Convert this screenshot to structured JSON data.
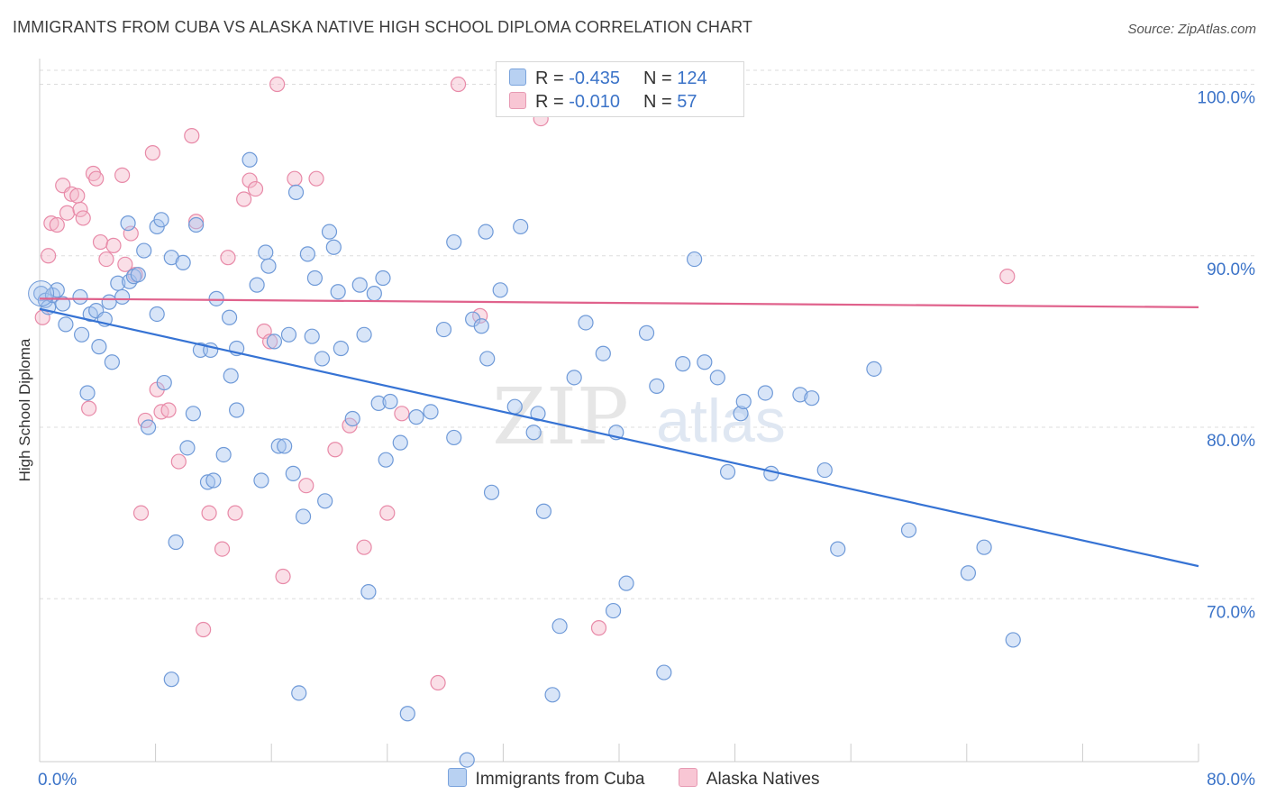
{
  "header": {
    "title": "IMMIGRANTS FROM CUBA VS ALASKA NATIVE HIGH SCHOOL DIPLOMA CORRELATION CHART",
    "source": "Source: ZipAtlas.com"
  },
  "watermark": {
    "zip": "ZIP",
    "atlas": "atlas"
  },
  "legend_top": {
    "rows": [
      {
        "r_label": "R = ",
        "r_value": "-0.435",
        "n_label": "N = ",
        "n_value": "124"
      },
      {
        "r_label": "R = ",
        "r_value": "-0.010",
        "n_label": "N = ",
        "n_value": "57"
      }
    ]
  },
  "colors": {
    "blue_fill": "#a9c6ef",
    "blue_stroke": "#6f9ad8",
    "blue_line": "#3673d4",
    "pink_fill": "#f5b7c9",
    "pink_stroke": "#e88aa8",
    "pink_line": "#e0628c",
    "tick_label": "#3b73c8",
    "grid": "#dddddd"
  },
  "chart_data": {
    "type": "scatter",
    "title": "IMMIGRANTS FROM CUBA VS ALASKA NATIVE HIGH SCHOOL DIPLOMA CORRELATION CHART",
    "xlabel": "",
    "ylabel": "High School Diploma",
    "xlim": [
      0,
      80
    ],
    "ylim": [
      60.5,
      101.5
    ],
    "x_tick_labels": [
      "0.0%",
      "80.0%"
    ],
    "y_ticks": [
      70,
      80,
      90,
      100
    ],
    "y_tick_labels": [
      "70.0%",
      "80.0%",
      "90.0%",
      "100.0%"
    ],
    "grid": "horizontal dashed",
    "legend_placement": "bottom-center",
    "series": [
      {
        "name": "Immigrants from Cuba",
        "color": "#a9c6ef",
        "trend": {
          "x": [
            0,
            80
          ],
          "y": [
            86.9,
            71.9
          ]
        },
        "points": [
          [
            0.1,
            87.8
          ],
          [
            0.4,
            87.4
          ],
          [
            0.6,
            87.0
          ],
          [
            0.9,
            87.7
          ],
          [
            1.2,
            88.0
          ],
          [
            1.6,
            87.2
          ],
          [
            1.8,
            86.0
          ],
          [
            2.8,
            87.6
          ],
          [
            2.9,
            85.4
          ],
          [
            3.3,
            82.0
          ],
          [
            3.5,
            86.6
          ],
          [
            3.9,
            86.8
          ],
          [
            4.1,
            84.7
          ],
          [
            4.5,
            86.3
          ],
          [
            4.8,
            87.3
          ],
          [
            5.0,
            83.8
          ],
          [
            5.4,
            88.4
          ],
          [
            5.7,
            87.6
          ],
          [
            6.1,
            91.9
          ],
          [
            6.2,
            88.5
          ],
          [
            6.5,
            88.8
          ],
          [
            6.8,
            88.9
          ],
          [
            7.2,
            90.3
          ],
          [
            7.5,
            80.0
          ],
          [
            8.1,
            86.6
          ],
          [
            8.1,
            91.7
          ],
          [
            8.4,
            92.1
          ],
          [
            8.6,
            82.6
          ],
          [
            9.1,
            89.9
          ],
          [
            9.4,
            73.3
          ],
          [
            9.9,
            89.6
          ],
          [
            10.2,
            78.8
          ],
          [
            10.6,
            80.8
          ],
          [
            10.8,
            91.8
          ],
          [
            11.1,
            84.5
          ],
          [
            11.6,
            76.8
          ],
          [
            11.8,
            84.5
          ],
          [
            12.0,
            76.9
          ],
          [
            12.2,
            87.5
          ],
          [
            12.7,
            78.4
          ],
          [
            13.1,
            86.4
          ],
          [
            13.2,
            83.0
          ],
          [
            13.6,
            81.0
          ],
          [
            13.6,
            84.6
          ],
          [
            14.5,
            95.6
          ],
          [
            15.0,
            88.3
          ],
          [
            15.3,
            76.9
          ],
          [
            15.6,
            90.2
          ],
          [
            15.8,
            89.4
          ],
          [
            16.2,
            85.0
          ],
          [
            16.5,
            78.9
          ],
          [
            16.9,
            78.9
          ],
          [
            17.2,
            85.4
          ],
          [
            17.5,
            77.3
          ],
          [
            17.7,
            93.7
          ],
          [
            18.2,
            74.8
          ],
          [
            18.5,
            90.1
          ],
          [
            18.8,
            85.3
          ],
          [
            19.0,
            88.7
          ],
          [
            19.5,
            84.0
          ],
          [
            19.7,
            75.7
          ],
          [
            20.0,
            91.4
          ],
          [
            20.3,
            90.5
          ],
          [
            20.6,
            87.9
          ],
          [
            20.8,
            84.6
          ],
          [
            21.6,
            80.5
          ],
          [
            22.1,
            88.3
          ],
          [
            22.4,
            85.4
          ],
          [
            22.7,
            70.4
          ],
          [
            23.1,
            87.8
          ],
          [
            23.4,
            81.4
          ],
          [
            23.7,
            88.7
          ],
          [
            23.9,
            78.1
          ],
          [
            24.2,
            81.5
          ],
          [
            24.9,
            79.1
          ],
          [
            25.4,
            63.3
          ],
          [
            26.0,
            80.6
          ],
          [
            27.0,
            80.9
          ],
          [
            27.9,
            85.7
          ],
          [
            28.6,
            79.4
          ],
          [
            28.6,
            90.8
          ],
          [
            29.5,
            60.6
          ],
          [
            29.9,
            86.3
          ],
          [
            30.5,
            85.9
          ],
          [
            30.8,
            91.4
          ],
          [
            30.9,
            84.0
          ],
          [
            31.2,
            76.2
          ],
          [
            31.8,
            88.0
          ],
          [
            32.8,
            81.2
          ],
          [
            33.2,
            91.7
          ],
          [
            34.1,
            79.7
          ],
          [
            34.4,
            80.8
          ],
          [
            34.8,
            75.1
          ],
          [
            35.4,
            64.4
          ],
          [
            35.9,
            68.4
          ],
          [
            36.9,
            82.9
          ],
          [
            37.7,
            86.1
          ],
          [
            38.9,
            84.3
          ],
          [
            39.6,
            69.3
          ],
          [
            39.8,
            79.7
          ],
          [
            40.5,
            70.9
          ],
          [
            41.9,
            85.5
          ],
          [
            42.6,
            82.4
          ],
          [
            43.1,
            65.7
          ],
          [
            44.4,
            83.7
          ],
          [
            45.2,
            89.8
          ],
          [
            45.9,
            83.8
          ],
          [
            46.8,
            82.9
          ],
          [
            47.5,
            77.4
          ],
          [
            48.4,
            80.8
          ],
          [
            48.6,
            81.5
          ],
          [
            50.1,
            82.0
          ],
          [
            50.5,
            77.3
          ],
          [
            52.5,
            81.9
          ],
          [
            53.3,
            81.7
          ],
          [
            54.2,
            77.5
          ],
          [
            55.1,
            72.9
          ],
          [
            57.6,
            83.4
          ],
          [
            60.0,
            74.0
          ],
          [
            64.1,
            71.5
          ],
          [
            65.2,
            73.0
          ],
          [
            67.2,
            67.6
          ],
          [
            9.1,
            65.3
          ],
          [
            17.9,
            64.5
          ]
        ]
      },
      {
        "name": "Alaska Natives",
        "color": "#f5b7c9",
        "trend": {
          "x": [
            0,
            80
          ],
          "y": [
            87.5,
            87.0
          ]
        },
        "points": [
          [
            0.2,
            86.4
          ],
          [
            0.6,
            90.0
          ],
          [
            0.8,
            91.9
          ],
          [
            1.2,
            91.8
          ],
          [
            1.6,
            94.1
          ],
          [
            1.9,
            92.5
          ],
          [
            2.2,
            93.6
          ],
          [
            2.6,
            93.5
          ],
          [
            2.8,
            92.7
          ],
          [
            3.0,
            92.2
          ],
          [
            3.4,
            81.1
          ],
          [
            3.7,
            94.8
          ],
          [
            3.9,
            94.5
          ],
          [
            4.2,
            90.8
          ],
          [
            4.6,
            89.8
          ],
          [
            5.1,
            90.6
          ],
          [
            5.7,
            94.7
          ],
          [
            5.9,
            89.5
          ],
          [
            6.3,
            91.3
          ],
          [
            6.6,
            88.9
          ],
          [
            7.0,
            75.0
          ],
          [
            7.3,
            80.4
          ],
          [
            7.8,
            96.0
          ],
          [
            8.1,
            82.2
          ],
          [
            8.4,
            80.9
          ],
          [
            8.9,
            81.0
          ],
          [
            9.6,
            78.0
          ],
          [
            10.5,
            97.0
          ],
          [
            10.8,
            92.0
          ],
          [
            11.3,
            68.2
          ],
          [
            11.7,
            75.0
          ],
          [
            12.6,
            72.9
          ],
          [
            13.0,
            89.9
          ],
          [
            13.5,
            75.0
          ],
          [
            14.1,
            93.3
          ],
          [
            14.5,
            94.4
          ],
          [
            14.9,
            93.9
          ],
          [
            15.5,
            85.6
          ],
          [
            15.9,
            85.0
          ],
          [
            16.4,
            100.0
          ],
          [
            16.8,
            71.3
          ],
          [
            17.6,
            94.5
          ],
          [
            18.4,
            76.6
          ],
          [
            19.1,
            94.5
          ],
          [
            20.4,
            78.7
          ],
          [
            21.4,
            80.1
          ],
          [
            22.4,
            73.0
          ],
          [
            24.0,
            75.0
          ],
          [
            25.0,
            80.8
          ],
          [
            27.5,
            65.1
          ],
          [
            28.9,
            100.0
          ],
          [
            30.4,
            86.5
          ],
          [
            34.6,
            98.0
          ],
          [
            38.6,
            68.3
          ],
          [
            40.2,
            98.9
          ],
          [
            44.8,
            100.0
          ],
          [
            66.8,
            88.8
          ]
        ]
      }
    ]
  },
  "legend_bottom": {
    "items": [
      {
        "label": "Immigrants from Cuba"
      },
      {
        "label": "Alaska Natives"
      }
    ]
  }
}
